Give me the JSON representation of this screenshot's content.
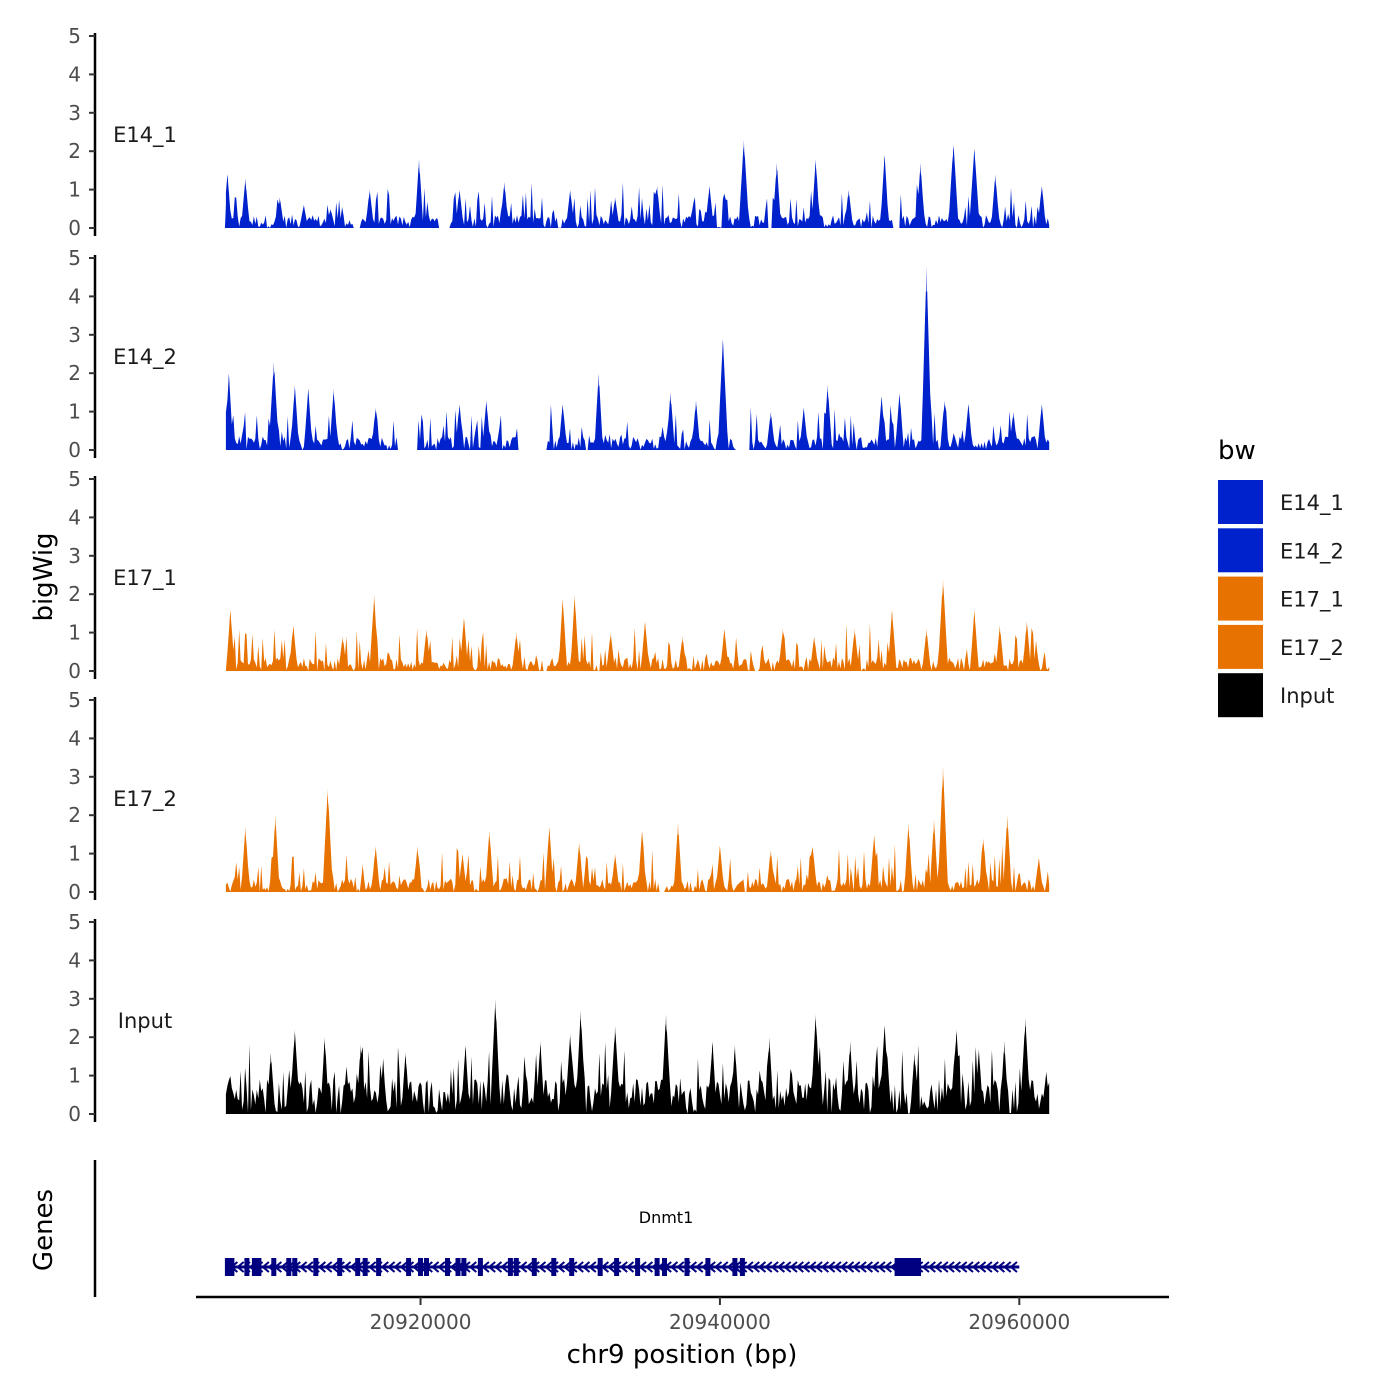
{
  "chart_data": {
    "type": "area",
    "title": "",
    "ylabel": "bigWig",
    "xlabel": "chr9 position (bp)",
    "xlim": [
      20905000,
      20970000
    ],
    "data_range": [
      20907000,
      20962000
    ],
    "x_ticks": [
      20920000,
      20940000,
      20960000
    ],
    "x_tick_labels": [
      "20920000",
      "20940000",
      "20960000"
    ],
    "ylim": [
      0,
      5
    ],
    "y_ticks": [
      0,
      1,
      2,
      3,
      4,
      5
    ],
    "y_tick_labels": [
      "0",
      "1",
      "2",
      "3",
      "4",
      "5"
    ],
    "tracks": [
      {
        "name": "E14_1",
        "color": "#0022CC",
        "peaks": [
          [
            20907100,
            1.4
          ],
          [
            20908300,
            1.3
          ],
          [
            20910600,
            0.8
          ],
          [
            20912200,
            0.6
          ],
          [
            20914000,
            0.5
          ],
          [
            20916600,
            1.0
          ],
          [
            20919900,
            1.8
          ],
          [
            20922600,
            1.0
          ],
          [
            20925600,
            1.2
          ],
          [
            20930000,
            1.0
          ],
          [
            20933000,
            0.8
          ],
          [
            20935800,
            1.1
          ],
          [
            20939300,
            1.1
          ],
          [
            20941600,
            2.3
          ],
          [
            20943800,
            1.7
          ],
          [
            20946400,
            1.8
          ],
          [
            20948600,
            1.0
          ],
          [
            20951000,
            1.9
          ],
          [
            20953400,
            1.7
          ],
          [
            20955600,
            2.2
          ],
          [
            20957000,
            2.1
          ],
          [
            20958400,
            1.4
          ],
          [
            20961500,
            1.1
          ]
        ],
        "gaps": [
          [
            20915500,
            20916000
          ],
          [
            20921200,
            20922000
          ],
          [
            20943200,
            20943500
          ],
          [
            20951500,
            20952000
          ]
        ]
      },
      {
        "name": "E14_2",
        "color": "#0022CC",
        "peaks": [
          [
            20907200,
            2.0
          ],
          [
            20910200,
            2.3
          ],
          [
            20911600,
            1.7
          ],
          [
            20912500,
            1.6
          ],
          [
            20914200,
            1.6
          ],
          [
            20917000,
            1.1
          ],
          [
            20922600,
            1.2
          ],
          [
            20924400,
            1.3
          ],
          [
            20929500,
            1.2
          ],
          [
            20931900,
            2.0
          ],
          [
            20936700,
            1.5
          ],
          [
            20938400,
            1.3
          ],
          [
            20940200,
            2.9
          ],
          [
            20943400,
            1.0
          ],
          [
            20945600,
            1.1
          ],
          [
            20947200,
            1.7
          ],
          [
            20950800,
            1.4
          ],
          [
            20952000,
            1.5
          ],
          [
            20953800,
            4.8
          ],
          [
            20955000,
            1.3
          ],
          [
            20956600,
            1.2
          ],
          [
            20959600,
            1.0
          ],
          [
            20961500,
            1.2
          ]
        ],
        "gaps": [
          [
            20918400,
            20919800
          ],
          [
            20926500,
            20928500
          ],
          [
            20931000,
            20931200
          ],
          [
            20941000,
            20942000
          ]
        ]
      },
      {
        "name": "E17_1",
        "color": "#E87200",
        "peaks": [
          [
            20907300,
            1.6
          ],
          [
            20911500,
            1.2
          ],
          [
            20914800,
            0.9
          ],
          [
            20916900,
            2.0
          ],
          [
            20920400,
            1.1
          ],
          [
            20922900,
            1.4
          ],
          [
            20926400,
            1.0
          ],
          [
            20929500,
            1.9
          ],
          [
            20930300,
            2.0
          ],
          [
            20932700,
            1.0
          ],
          [
            20935000,
            1.3
          ],
          [
            20937500,
            0.9
          ],
          [
            20940300,
            1.1
          ],
          [
            20944200,
            1.1
          ],
          [
            20946300,
            0.9
          ],
          [
            20949000,
            1.1
          ],
          [
            20951500,
            1.6
          ],
          [
            20953800,
            1.1
          ],
          [
            20954900,
            2.4
          ],
          [
            20957000,
            1.6
          ],
          [
            20958700,
            1.2
          ],
          [
            20960500,
            1.3
          ]
        ],
        "gaps": [
          [
            20928200,
            20928500
          ],
          [
            20942300,
            20942600
          ]
        ]
      },
      {
        "name": "E17_2",
        "color": "#E87200",
        "peaks": [
          [
            20908300,
            1.7
          ],
          [
            20910300,
            2.0
          ],
          [
            20913800,
            2.7
          ],
          [
            20917000,
            1.2
          ],
          [
            20919800,
            1.2
          ],
          [
            20922800,
            1.0
          ],
          [
            20924600,
            1.6
          ],
          [
            20928600,
            1.7
          ],
          [
            20930600,
            1.3
          ],
          [
            20933000,
            1.0
          ],
          [
            20934800,
            1.6
          ],
          [
            20937200,
            1.8
          ],
          [
            20940000,
            1.2
          ],
          [
            20943400,
            1.1
          ],
          [
            20946200,
            1.2
          ],
          [
            20950300,
            1.5
          ],
          [
            20952600,
            1.8
          ],
          [
            20954300,
            1.9
          ],
          [
            20954900,
            3.3
          ],
          [
            20957600,
            1.4
          ],
          [
            20959200,
            2.0
          ],
          [
            20961300,
            0.9
          ]
        ],
        "gaps": [
          [
            20935900,
            20936300
          ],
          [
            20941600,
            20941800
          ]
        ]
      },
      {
        "name": "Input",
        "color": "#000000",
        "peaks": [
          [
            20907300,
            1.0
          ],
          [
            20910000,
            1.6
          ],
          [
            20911600,
            2.2
          ],
          [
            20913600,
            2.0
          ],
          [
            20916000,
            1.8
          ],
          [
            20919000,
            1.6
          ],
          [
            20923000,
            1.8
          ],
          [
            20925000,
            3.0
          ],
          [
            20928000,
            1.9
          ],
          [
            20930000,
            2.1
          ],
          [
            20930700,
            2.7
          ],
          [
            20933000,
            2.3
          ],
          [
            20936400,
            2.6
          ],
          [
            20939500,
            1.9
          ],
          [
            20941000,
            1.8
          ],
          [
            20943300,
            2.0
          ],
          [
            20946400,
            2.6
          ],
          [
            20948700,
            1.9
          ],
          [
            20951000,
            2.3
          ],
          [
            20953000,
            1.6
          ],
          [
            20955800,
            2.2
          ],
          [
            20957300,
            1.7
          ],
          [
            20959000,
            1.9
          ],
          [
            20960400,
            2.5
          ],
          [
            20961800,
            1.1
          ]
        ],
        "gaps": []
      }
    ],
    "genes_track": {
      "label": "Genes",
      "gene_name": "Dnmt1",
      "gene_start": 20907000,
      "gene_end": 20960000,
      "strand": "-",
      "color": "#000080",
      "exons": [
        20907100,
        20907400,
        20908400,
        20908900,
        20909200,
        20910200,
        20911200,
        20911600,
        20913000,
        20914600,
        20915800,
        20916300,
        20917200,
        20919200,
        20920000,
        20920400,
        20921800,
        20922500,
        20922900,
        20924000,
        20926000,
        20926400,
        20927600,
        20928900,
        20930100,
        20932000,
        20933100,
        20934500,
        20935800,
        20936300,
        20937800,
        20939200,
        20941000,
        20941500,
        20952000,
        20952300,
        20952700,
        20953100
      ]
    },
    "legend": {
      "title": "bw",
      "position": "right",
      "entries": [
        {
          "label": "E14_1",
          "color": "#0022CC"
        },
        {
          "label": "E14_2",
          "color": "#0022CC"
        },
        {
          "label": "E17_1",
          "color": "#E87200"
        },
        {
          "label": "E17_2",
          "color": "#E87200"
        },
        {
          "label": "Input",
          "color": "#000000"
        }
      ]
    }
  }
}
